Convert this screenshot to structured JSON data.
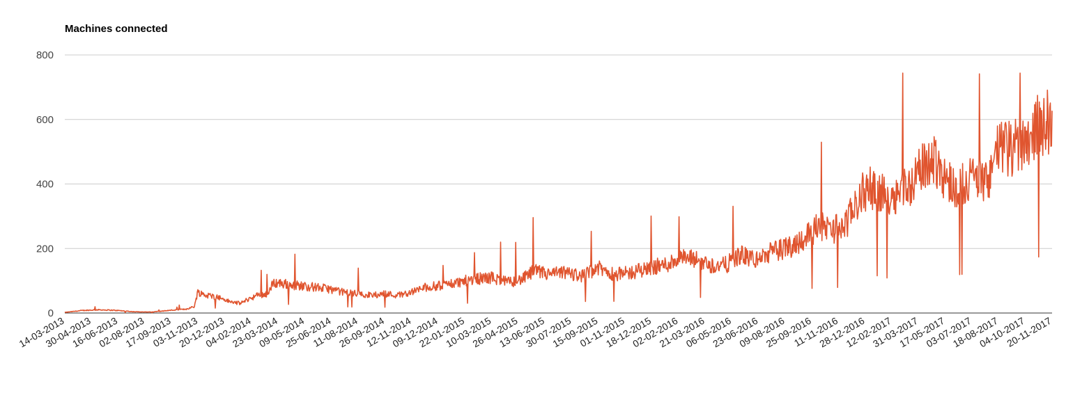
{
  "chart_data": {
    "type": "line",
    "title": "Machines connected",
    "xlabel": "",
    "ylabel": "",
    "ylim": [
      0,
      800
    ],
    "yticks": [
      0,
      200,
      400,
      600,
      800
    ],
    "grid": true,
    "legend": "none",
    "x_range": [
      "2013-03-14",
      "2017-12-31"
    ],
    "x_tick_labels": [
      "14-03-2013",
      "30-04-2013",
      "16-06-2013",
      "02-08-2013",
      "17-09-2013",
      "03-11-2013",
      "20-12-2013",
      "04-02-2014",
      "23-03-2014",
      "09-05-2014",
      "25-06-2014",
      "11-08-2014",
      "26-09-2014",
      "12-11-2014",
      "09-12-2014",
      "22-01-2015",
      "10-03-2015",
      "26-04-2015",
      "13-06-2015",
      "30-07-2015",
      "15-09-2015",
      "01-11-2015",
      "18-12-2015",
      "02-02-2016",
      "21-03-2016",
      "06-05-2016",
      "23-06-2016",
      "09-08-2016",
      "25-09-2016",
      "11-11-2016",
      "28-12-2016",
      "12-02-2017",
      "31-03-2017",
      "17-05-2017",
      "03-07-2017",
      "18-08-2017",
      "04-10-2017",
      "20-11-2017"
    ],
    "series": [
      {
        "color": "#e0552f",
        "points": [
          [
            "2013-03-14",
            2
          ],
          [
            "2013-04-15",
            8
          ],
          [
            "2013-05-15",
            10
          ],
          [
            "2013-06-15",
            8
          ],
          [
            "2013-07-15",
            4
          ],
          [
            "2013-08-15",
            3
          ],
          [
            "2013-09-15",
            8
          ],
          [
            "2013-10-15",
            12
          ],
          [
            "2013-10-30",
            20
          ],
          [
            "2013-11-05",
            65
          ],
          [
            "2013-11-20",
            55
          ],
          [
            "2013-12-10",
            50
          ],
          [
            "2014-01-01",
            35
          ],
          [
            "2014-01-20",
            30
          ],
          [
            "2014-02-05",
            45
          ],
          [
            "2014-02-20",
            55
          ],
          [
            "2014-03-10",
            60
          ],
          [
            "2014-03-20",
            95
          ],
          [
            "2014-04-10",
            90
          ],
          [
            "2014-05-05",
            85
          ],
          [
            "2014-06-01",
            80
          ],
          [
            "2014-06-25",
            75
          ],
          [
            "2014-07-20",
            65
          ],
          [
            "2014-08-15",
            60
          ],
          [
            "2014-09-10",
            55
          ],
          [
            "2014-10-05",
            60
          ],
          [
            "2014-10-25",
            55
          ],
          [
            "2014-11-20",
            65
          ],
          [
            "2014-12-15",
            80
          ],
          [
            "2015-01-10",
            85
          ],
          [
            "2015-02-10",
            95
          ],
          [
            "2015-03-10",
            105
          ],
          [
            "2015-04-10",
            110
          ],
          [
            "2015-05-10",
            95
          ],
          [
            "2015-06-05",
            105
          ],
          [
            "2015-06-25",
            130
          ],
          [
            "2015-07-20",
            120
          ],
          [
            "2015-08-20",
            125
          ],
          [
            "2015-09-20",
            115
          ],
          [
            "2015-10-15",
            140
          ],
          [
            "2015-11-15",
            120
          ],
          [
            "2015-12-15",
            125
          ],
          [
            "2016-01-15",
            140
          ],
          [
            "2016-02-15",
            150
          ],
          [
            "2016-03-10",
            170
          ],
          [
            "2016-04-10",
            165
          ],
          [
            "2016-05-10",
            145
          ],
          [
            "2016-06-01",
            150
          ],
          [
            "2016-06-25",
            180
          ],
          [
            "2016-07-25",
            165
          ],
          [
            "2016-08-20",
            190
          ],
          [
            "2016-09-15",
            200
          ],
          [
            "2016-10-15",
            230
          ],
          [
            "2016-11-10",
            270
          ],
          [
            "2016-12-05",
            260
          ],
          [
            "2016-12-28",
            270
          ],
          [
            "2017-01-15",
            330
          ],
          [
            "2017-02-01",
            380
          ],
          [
            "2017-02-20",
            390
          ],
          [
            "2017-03-10",
            360
          ],
          [
            "2017-04-01",
            375
          ],
          [
            "2017-04-25",
            400
          ],
          [
            "2017-05-15",
            450
          ],
          [
            "2017-06-05",
            480
          ],
          [
            "2017-06-25",
            420
          ],
          [
            "2017-07-10",
            390
          ],
          [
            "2017-07-25",
            400
          ],
          [
            "2017-08-10",
            420
          ],
          [
            "2017-08-25",
            410
          ],
          [
            "2017-09-05",
            400
          ],
          [
            "2017-09-20",
            490
          ],
          [
            "2017-10-05",
            520
          ],
          [
            "2017-10-20",
            500
          ],
          [
            "2017-11-01",
            530
          ],
          [
            "2017-11-15",
            540
          ],
          [
            "2017-11-30",
            570
          ],
          [
            "2017-12-15",
            590
          ],
          [
            "2017-12-31",
            590
          ]
        ]
      }
    ]
  }
}
